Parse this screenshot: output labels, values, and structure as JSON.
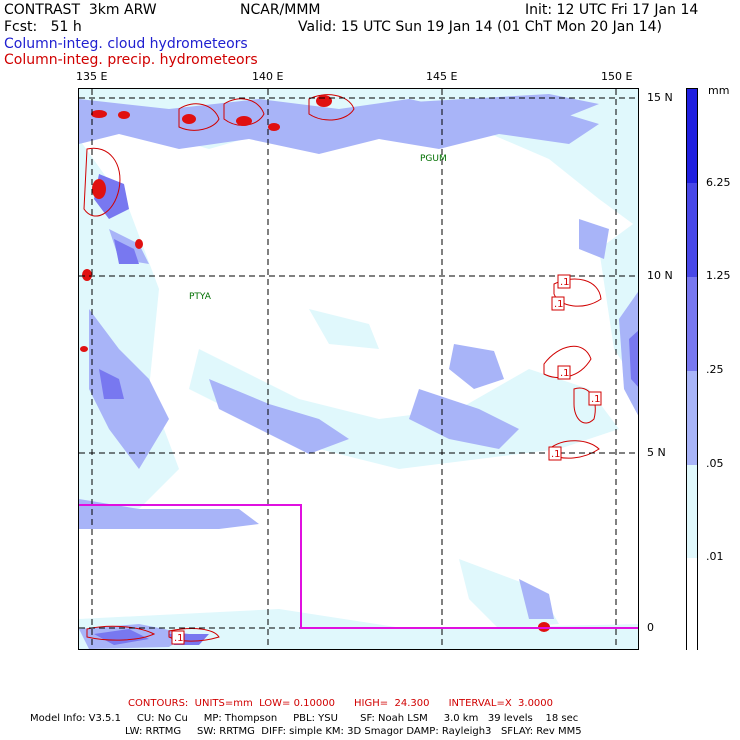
{
  "header": {
    "model": "CONTRAST  3km ARW",
    "center": "NCAR/MMM",
    "init": "Init: 12 UTC Fri 17 Jan 14",
    "fcst": "Fcst:   51 h",
    "valid": "Valid: 15 UTC Sun 19 Jan 14 (01 ChT Mon 20 Jan 14)",
    "legend_cloud": "Column-integ. cloud hydrometeors",
    "legend_precip": "Column-integ. precip. hydrometeors"
  },
  "map": {
    "lon_labels": [
      "135 E",
      "140 E",
      "145 E",
      "150 E"
    ],
    "lat_labels": [
      "15 N",
      "10 N",
      "5 N",
      "0"
    ],
    "stations": [
      "PGUM",
      "PTYA"
    ],
    "contour_labels": [
      ".1",
      ".1",
      ".1",
      ".1",
      ".1",
      ".1"
    ]
  },
  "colorbar": {
    "unit": "mm",
    "labels": [
      "6.25",
      "1.25",
      ".25",
      ".05",
      ".01"
    ],
    "colors": [
      "#2020e0",
      "#4848e8",
      "#7878f0",
      "#a8b4f8",
      "#e0f8fc",
      "#ffffff"
    ]
  },
  "footer": {
    "contours": "CONTOURS:  UNITS=mm  LOW= 0.10000      HIGH=  24.300      INTERVAL=X  3.0000",
    "model_info_1": "Model Info: V3.5.1     CU: No Cu     MP: Thompson     PBL: YSU       SF: Noah LSM     3.0 km   39 levels    18 sec",
    "model_info_2": "LW: RRTMG     SW: RRTMG  DIFF: simple KM: 3D Smagor DAMP: Rayleigh3   SFLAY: Rev MM5"
  }
}
